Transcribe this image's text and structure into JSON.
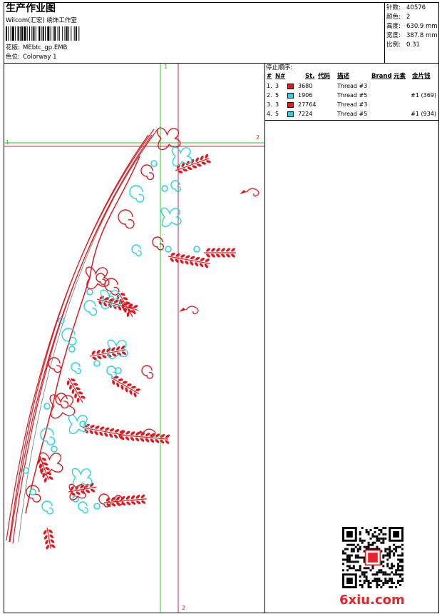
{
  "header": {
    "title": "生产作业图",
    "company": "Wilcom(汇宏) 绣饰工作室",
    "design_file_label": "花版:",
    "design_file": "MEbtc_gp.EMB",
    "colorway_label": "色位:",
    "colorway": "Colorway 1"
  },
  "info": {
    "stitches_label": "针数:",
    "stitches": "40576",
    "colors_label": "颜色:",
    "colors": "2",
    "height_label": "高度:",
    "height": "630.9 mm",
    "width_label": "宽度:",
    "width": "387.8 mm",
    "scale_label": "比例:",
    "scale": "0.31"
  },
  "stop_sequence": {
    "title": "停止顺序:",
    "columns": {
      "index": "#",
      "needle": "N#",
      "stitches": "St.",
      "code": "代码",
      "description": "描述",
      "brand": "Brand",
      "element": "元素",
      "sequin": "金片钱"
    },
    "rows": [
      {
        "index": "1.",
        "needle": "3",
        "color": "#e8161c",
        "stitches": "3680",
        "description": "Thread #3",
        "sequin": ""
      },
      {
        "index": "2.",
        "needle": "5",
        "color": "#1ed6e6",
        "stitches": "1906",
        "description": "Thread #5",
        "sequin": "#1 (369)"
      },
      {
        "index": "3.",
        "needle": "3",
        "color": "#e8161c",
        "stitches": "27764",
        "description": "Thread #3",
        "sequin": ""
      },
      {
        "index": "4.",
        "needle": "5",
        "color": "#1ed6e6",
        "stitches": "7224",
        "description": "Thread #5",
        "sequin": "#1 (934)"
      }
    ]
  },
  "guides": {
    "vertical_1": "1",
    "vertical_2": "2",
    "horizontal_1": "1",
    "horizontal_2": "2"
  },
  "watermark": "6xiu.com",
  "colors": {
    "thread_red": "#e8161c",
    "thread_cyan": "#1ed6e6",
    "guide_green": "#22cc22",
    "guide_red": "#cc2244"
  }
}
